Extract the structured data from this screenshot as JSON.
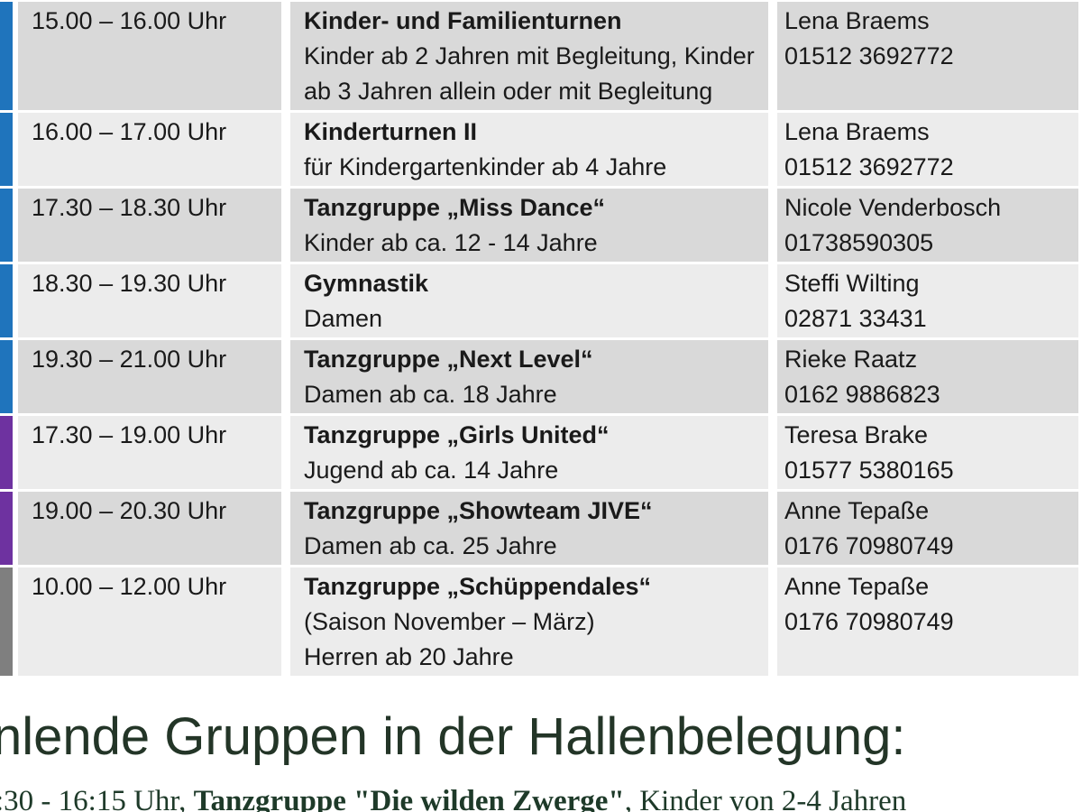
{
  "table": {
    "rows": [
      {
        "day_color": "blue",
        "time": "15.00 – 16.00 Uhr",
        "title": "Kinder- und Familienturnen",
        "details": [
          "Kinder ab 2 Jahren mit Begleitung, Kinder",
          "ab 3 Jahren allein oder mit Begleitung"
        ],
        "contact": {
          "name": "Lena Braems",
          "phone": "01512 3692772"
        }
      },
      {
        "day_color": "blue",
        "time": "16.00 – 17.00 Uhr",
        "title": "Kinderturnen II",
        "details": [
          "für Kindergartenkinder ab 4 Jahre"
        ],
        "contact": {
          "name": "Lena Braems",
          "phone": "01512 3692772"
        }
      },
      {
        "day_color": "blue",
        "time": "17.30 – 18.30 Uhr",
        "title": "Tanzgruppe „Miss Dance“",
        "details": [
          "Kinder ab ca. 12 - 14 Jahre"
        ],
        "contact": {
          "name": "Nicole Venderbosch",
          "phone": "01738590305"
        }
      },
      {
        "day_color": "blue",
        "time": "18.30 – 19.30 Uhr",
        "title": "Gymnastik",
        "details": [
          "Damen"
        ],
        "contact": {
          "name": "Steffi Wilting",
          "phone": "02871 33431"
        }
      },
      {
        "day_color": "blue",
        "time": "19.30 – 21.00 Uhr",
        "title": "Tanzgruppe „Next Level“",
        "details": [
          "Damen ab ca. 18 Jahre"
        ],
        "contact": {
          "name": "Rieke Raatz",
          "phone": "0162 9886823"
        }
      },
      {
        "day_color": "purple",
        "time": "17.30 – 19.00 Uhr",
        "title": "Tanzgruppe „Girls United“",
        "details": [
          "Jugend ab ca. 14 Jahre"
        ],
        "contact": {
          "name": "Teresa Brake",
          "phone": "01577 5380165"
        }
      },
      {
        "day_color": "purple",
        "time": "19.00 – 20.30 Uhr",
        "title": "Tanzgruppe „Showteam JIVE“",
        "details": [
          "Damen ab ca. 25 Jahre"
        ],
        "contact": {
          "name": "Anne Tepaße",
          "phone": "0176 70980749"
        }
      },
      {
        "day_color": "gray",
        "time": "10.00 – 12.00 Uhr",
        "title": "Tanzgruppe „Schüppendales“",
        "details": [
          "(Saison November – März)",
          "Herren ab 20 Jahre"
        ],
        "contact": {
          "name": "Anne Tepaße",
          "phone": "0176 70980749"
        }
      }
    ]
  },
  "footer": {
    "heading": "nlende Gruppen in der Hallenbelegung:",
    "note_prefix": ":30 - 16:15 Uhr, ",
    "note_bold": "Tanzgruppe \"Die wilden Zwerge\"",
    "note_suffix": ", Kinder von 2-4 Jahren"
  },
  "colors": {
    "day_bar_blue": "#1f74bc",
    "day_bar_purple": "#6e32a0",
    "day_bar_gray": "#7f7f7f",
    "row_background_dark": "#d9d9d9",
    "row_background_light": "#ececec",
    "heading_text": "#233527",
    "note_text": "#1e3a29"
  }
}
